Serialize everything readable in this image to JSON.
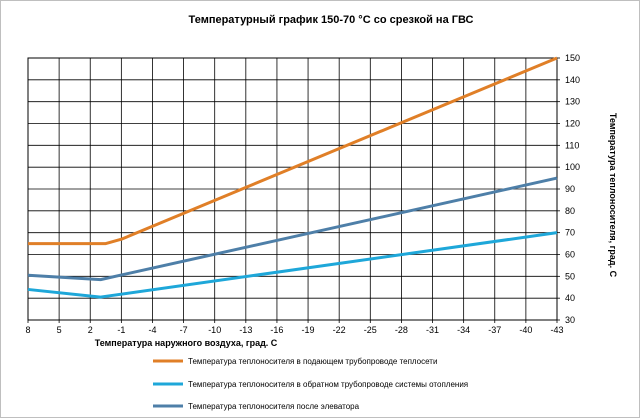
{
  "chart_data": {
    "type": "line",
    "title": "Температурный график 150-70 °C со срезкой на ГВС",
    "xlabel": "Температура наружного воздуха, град. С",
    "ylabel": "Температура теплоносителя, град. С",
    "x_ticks": [
      "8",
      "5",
      "2",
      "-1",
      "-4",
      "-7",
      "-10",
      "-13",
      "-16",
      "-19",
      "-22",
      "-25",
      "-28",
      "-31",
      "-34",
      "-37",
      "-40",
      "-43"
    ],
    "xlim": [
      8,
      -43
    ],
    "y_ticks": [
      "30",
      "40",
      "50",
      "60",
      "70",
      "80",
      "90",
      "100",
      "110",
      "120",
      "130",
      "140",
      "150"
    ],
    "ylim": [
      30,
      150
    ],
    "grid": true,
    "legend_position": "bottom",
    "series": [
      {
        "name": "Температура теплоносителя в подающем трубопроводе теплосети",
        "color": "#e07f27",
        "x": [
          8,
          0.5,
          -1,
          -43
        ],
        "y": [
          65,
          65,
          67,
          150
        ]
      },
      {
        "name": "Температура теплоносителя в обратном трубопроводе  системы отопления",
        "color": "#1ea7d9",
        "x": [
          8,
          1,
          -43
        ],
        "y": [
          44,
          40.5,
          70
        ]
      },
      {
        "name": "Температура теплоносителя после элеватора",
        "color": "#4e7fa8",
        "x": [
          8,
          1,
          -43
        ],
        "y": [
          50.5,
          48.5,
          95
        ]
      }
    ]
  }
}
